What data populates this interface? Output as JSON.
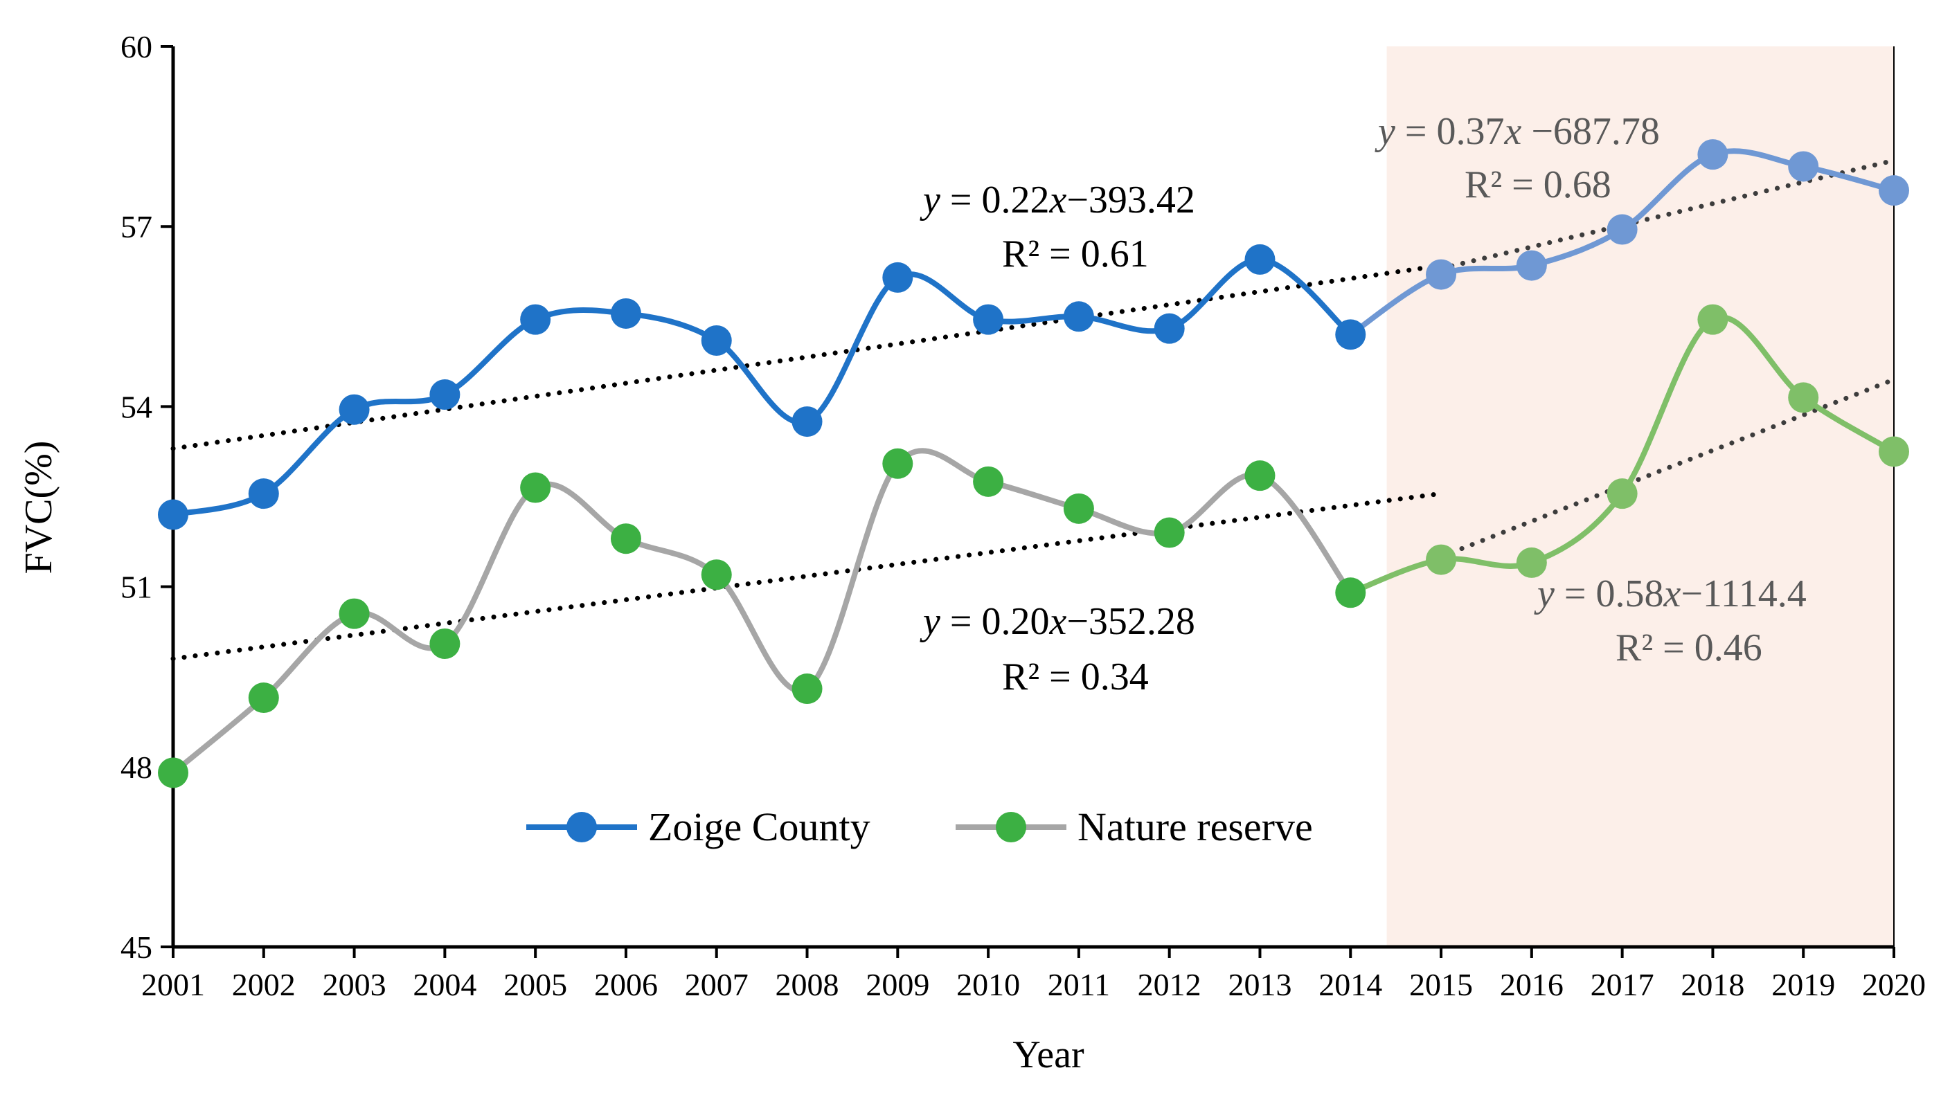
{
  "chart_data": {
    "type": "line",
    "title": "",
    "xlabel": "Year",
    "ylabel": "FVC(%)",
    "ylim": [
      45,
      60
    ],
    "yticks": [
      45,
      48,
      51,
      54,
      57,
      60
    ],
    "x": [
      2001,
      2002,
      2003,
      2004,
      2005,
      2006,
      2007,
      2008,
      2009,
      2010,
      2011,
      2012,
      2013,
      2014,
      2015,
      2016,
      2017,
      2018,
      2019,
      2020
    ],
    "x_tick_labels": [
      "2001",
      "2002",
      "2003",
      "2004",
      "2005",
      "2006",
      "2007",
      "2008",
      "2009",
      "2010",
      "2011",
      "2012",
      "2013",
      "2014",
      "2015",
      "2016",
      "2017",
      "2018",
      "2019",
      "2020"
    ],
    "highlight_region": {
      "x_start": 2014.4,
      "x_end": 2020,
      "color": "#fcefe9"
    },
    "series": [
      {
        "name": "Zoige County",
        "line_color": "#1f73c8",
        "line_color_highlight": "#6f98d4",
        "marker_color": "#1f73c8",
        "marker_color_highlight": "#6f98d4",
        "values": [
          52.2,
          52.55,
          53.95,
          54.2,
          55.45,
          55.55,
          55.1,
          53.75,
          56.15,
          55.45,
          55.5,
          55.3,
          56.45,
          55.2,
          56.2,
          56.35,
          56.95,
          58.2,
          58.0,
          57.6
        ]
      },
      {
        "name": "Nature reserve",
        "line_color": "#a6a6a6",
        "line_color_highlight": "#7fbf68",
        "marker_color": "#3cb043",
        "marker_color_highlight": "#7fbf68",
        "values": [
          47.9,
          49.15,
          50.55,
          50.05,
          52.65,
          51.8,
          51.2,
          49.3,
          53.05,
          52.75,
          52.3,
          51.9,
          52.85,
          50.9,
          51.45,
          51.4,
          52.55,
          55.45,
          54.15,
          53.25
        ]
      }
    ],
    "trendlines": [
      {
        "series": "Zoige County",
        "x_start": 2001,
        "x_end": 2015,
        "y_start": 53.3,
        "y_end": 56.35,
        "color": "#000000"
      },
      {
        "series": "Nature reserve",
        "x_start": 2001,
        "x_end": 2015,
        "y_start": 49.8,
        "y_end": 52.55,
        "color": "#000000"
      },
      {
        "series": "Zoige County",
        "x_start": 2015,
        "x_end": 2020,
        "y_start": 56.3,
        "y_end": 58.1,
        "color": "#3c3c3c"
      },
      {
        "series": "Nature reserve",
        "x_start": 2015,
        "x_end": 2020,
        "y_start": 51.5,
        "y_end": 54.45,
        "color": "#3c3c3c"
      }
    ],
    "annotations": {
      "eq1": {
        "y": "y",
        "rest": " = 0.22",
        "x": "x",
        "tail": "−393.42",
        "r2": "R² = 0.61",
        "color": "#000000"
      },
      "eq2": {
        "y": "y",
        "rest": " = 0.20",
        "x": "x",
        "tail": "−352.28",
        "r2": "R² = 0.34",
        "color": "#000000"
      },
      "eq3": {
        "y": "y",
        "rest": " = 0.37",
        "x": "x",
        "tail": " −687.78",
        "r2": "R² = 0.68",
        "color": "#595959"
      },
      "eq4": {
        "y": "y",
        "rest": " = 0.58",
        "x": "x",
        "tail": "−1114.4",
        "r2": "R² = 0.46",
        "color": "#595959"
      }
    },
    "legend": {
      "position": "bottom-center",
      "entries": [
        "Zoige County",
        "Nature reserve"
      ]
    }
  }
}
